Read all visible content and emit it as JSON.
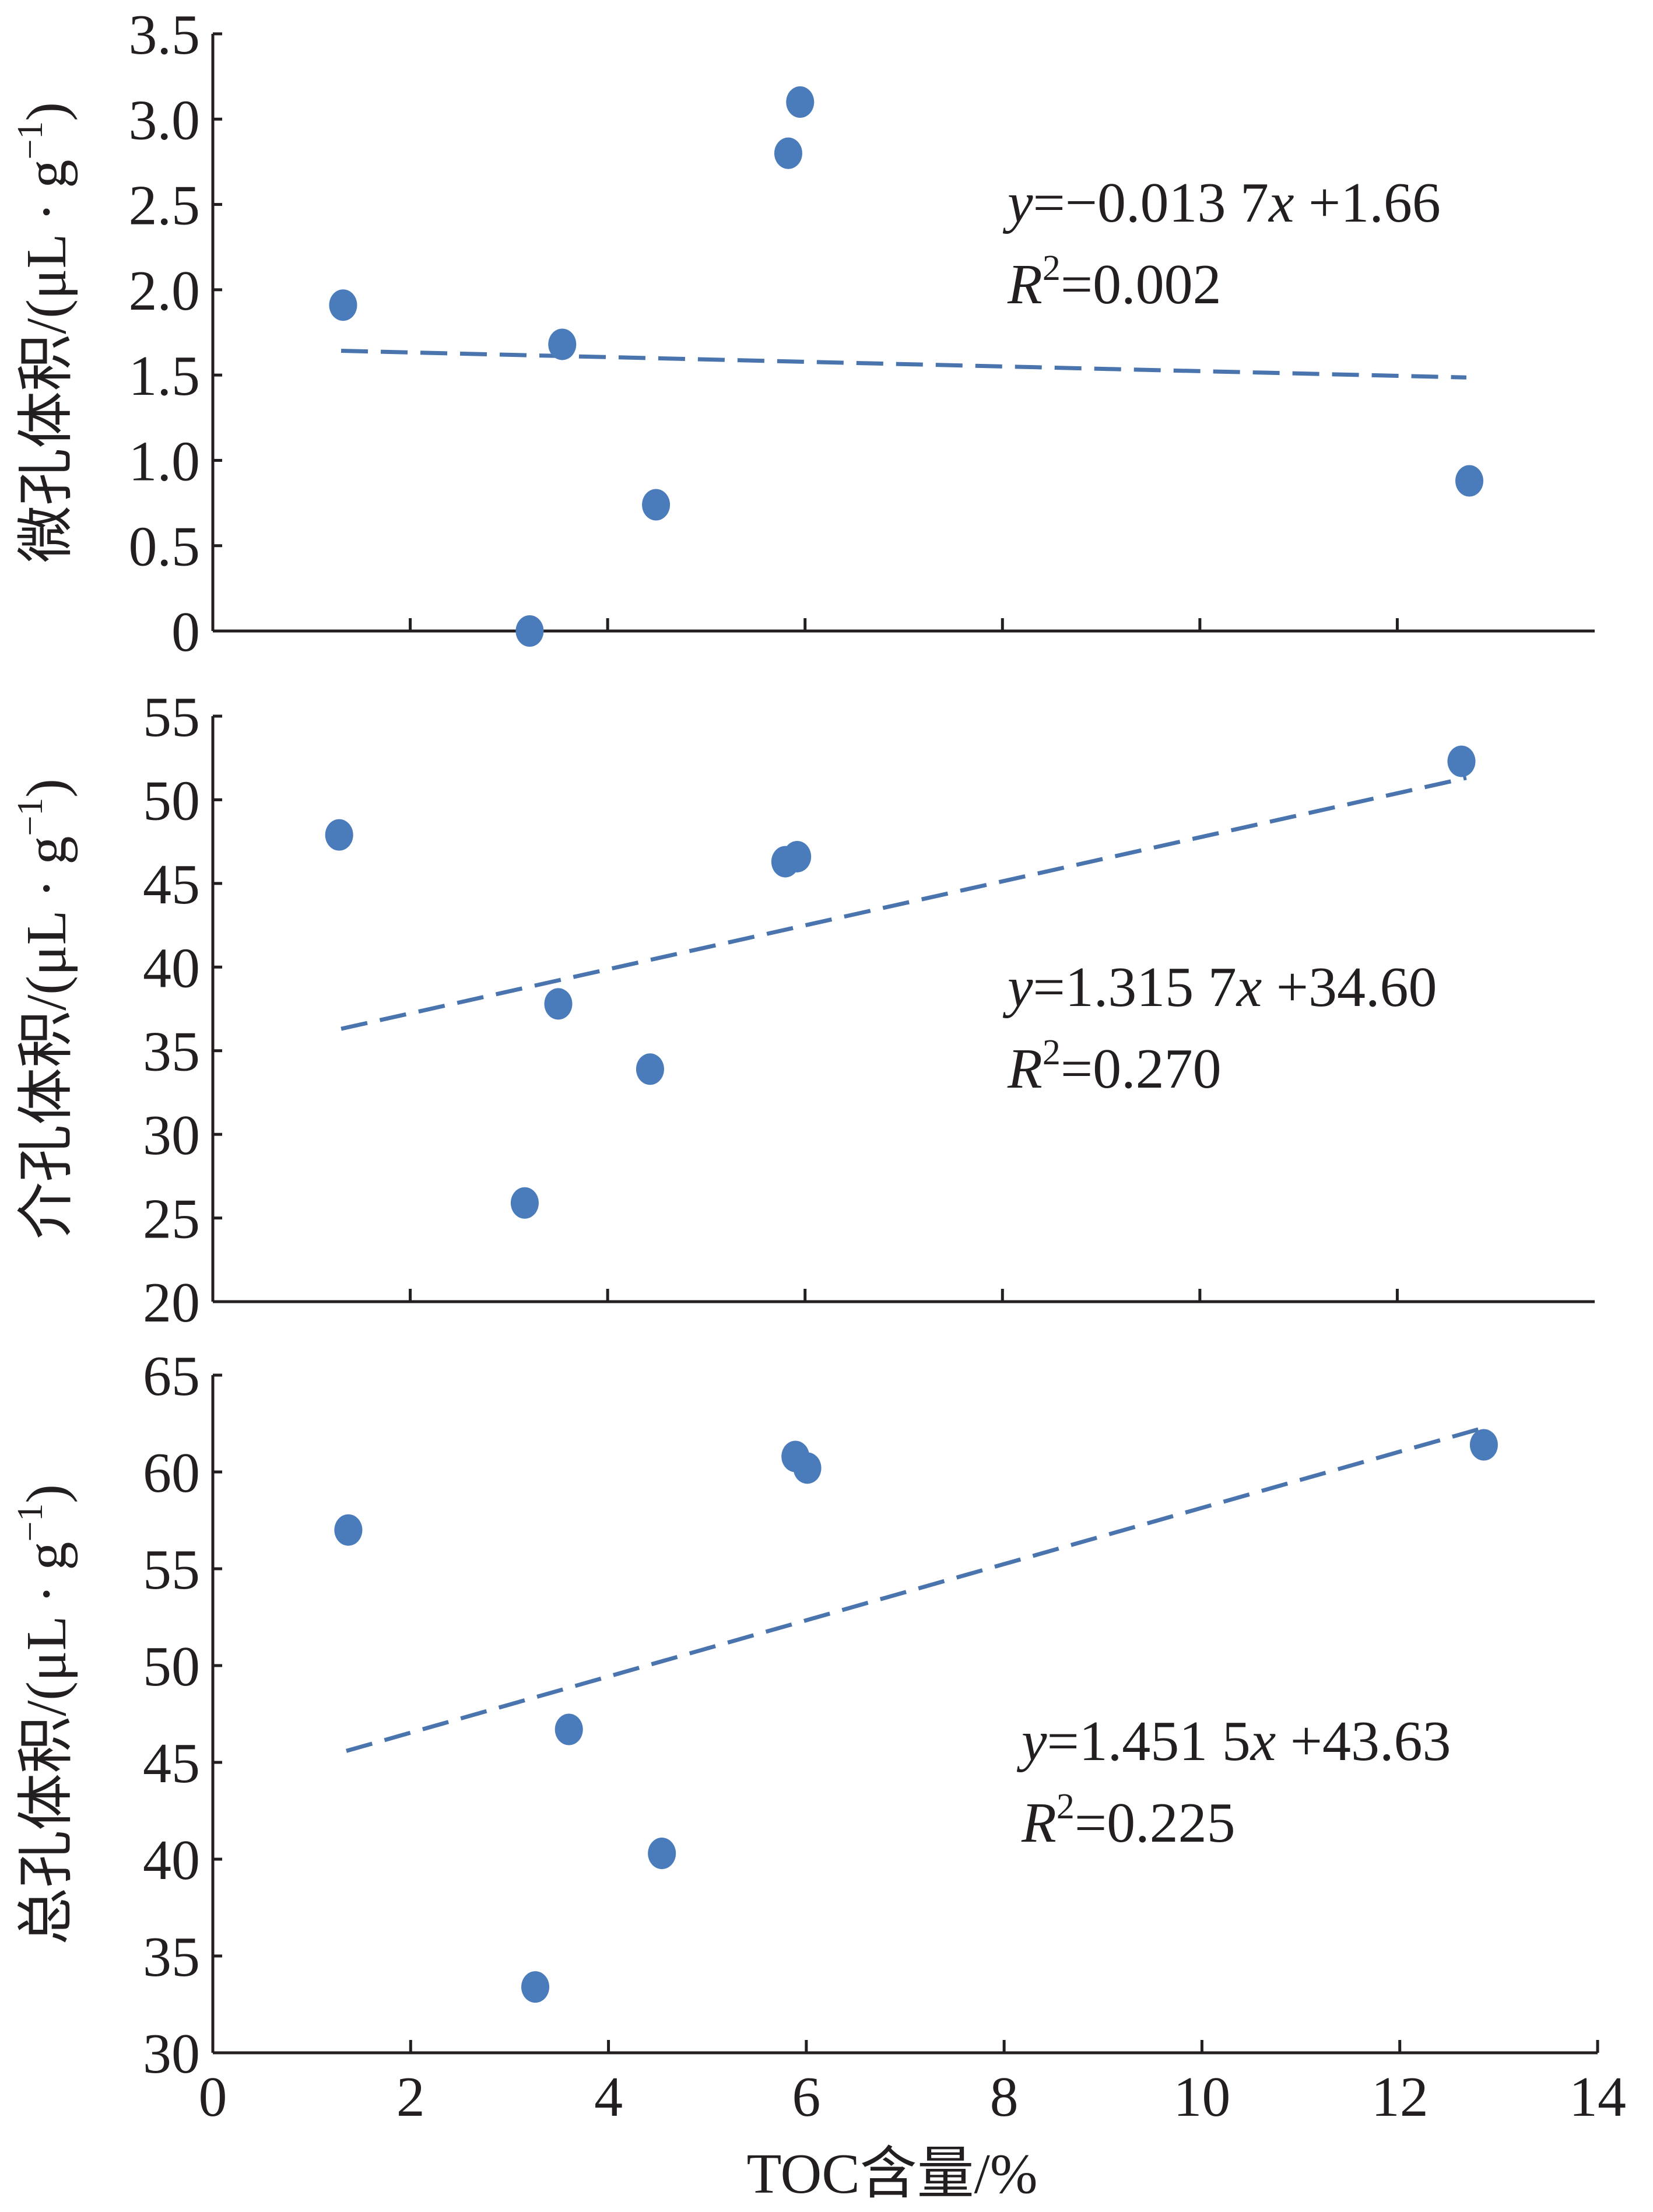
{
  "chart_data": [
    {
      "type": "scatter",
      "panel": "micropore",
      "ylabel": "微孔体积/(μL · g",
      "ylabel_sup": "−1",
      "ylabel_close": ")",
      "ylim": [
        0,
        3.5
      ],
      "yticks": [
        0,
        0.5,
        1.0,
        1.5,
        2.0,
        2.5,
        3.0,
        3.5
      ],
      "ytick_labels": [
        "0",
        "0.5",
        "1.0",
        "1.5",
        "2.0",
        "2.5",
        "3.0",
        "3.5"
      ],
      "xlim": [
        0,
        14
      ],
      "xticks": [
        2,
        4,
        6,
        8,
        10,
        12
      ],
      "points": [
        {
          "x": 1.32,
          "y": 1.91
        },
        {
          "x": 3.54,
          "y": 1.68
        },
        {
          "x": 3.21,
          "y": 0.0
        },
        {
          "x": 4.49,
          "y": 0.74
        },
        {
          "x": 5.83,
          "y": 2.8
        },
        {
          "x": 5.95,
          "y": 3.1
        },
        {
          "x": 12.73,
          "y": 0.88
        }
      ],
      "trendline": {
        "slope": -0.0137,
        "intercept": 1.66,
        "x_range": [
          1.3,
          12.7
        ]
      },
      "equation": {
        "y": "y",
        "rhs": "=−0.013 7",
        "x": "x",
        "const": " +1.66",
        "r": "R",
        "r_sup": "2",
        "r_val": "=0.002"
      }
    },
    {
      "type": "scatter",
      "panel": "mesopore",
      "ylabel": "介孔体积/(μL · g",
      "ylabel_sup": "−1",
      "ylabel_close": ")",
      "ylim": [
        20,
        55
      ],
      "yticks": [
        20,
        25,
        30,
        35,
        40,
        45,
        50,
        55
      ],
      "ytick_labels": [
        "20",
        "25",
        "30",
        "35",
        "40",
        "45",
        "50",
        "55"
      ],
      "xlim": [
        0,
        14
      ],
      "xticks": [
        2,
        4,
        6,
        8,
        10,
        12
      ],
      "points": [
        {
          "x": 1.28,
          "y": 47.9
        },
        {
          "x": 3.5,
          "y": 37.8
        },
        {
          "x": 3.16,
          "y": 25.9
        },
        {
          "x": 4.43,
          "y": 33.9
        },
        {
          "x": 5.8,
          "y": 46.3
        },
        {
          "x": 5.92,
          "y": 46.6
        },
        {
          "x": 12.65,
          "y": 52.3
        }
      ],
      "trendline": {
        "slope": 1.3157,
        "intercept": 34.6,
        "x_range": [
          1.3,
          12.7
        ]
      },
      "equation": {
        "y": "y",
        "rhs": "=1.315 7",
        "x": "x",
        "const": " +34.60",
        "r": "R",
        "r_sup": "2",
        "r_val": "=0.270"
      }
    },
    {
      "type": "scatter",
      "panel": "total",
      "ylabel": "总孔体积/(μL · g",
      "ylabel_sup": "−1",
      "ylabel_close": ")",
      "ylim": [
        30,
        65
      ],
      "yticks": [
        30,
        35,
        40,
        45,
        50,
        55,
        60,
        65
      ],
      "ytick_labels": [
        "30",
        "35",
        "40",
        "45",
        "50",
        "55",
        "60",
        "65"
      ],
      "xlim": [
        0,
        14
      ],
      "xticks": [
        0,
        2,
        4,
        6,
        8,
        10,
        12,
        14
      ],
      "xtick_labels": [
        "0",
        "2",
        "4",
        "6",
        "8",
        "10",
        "12",
        "14"
      ],
      "xlabel": "TOC含量/%",
      "points": [
        {
          "x": 1.37,
          "y": 57.0
        },
        {
          "x": 3.6,
          "y": 46.7
        },
        {
          "x": 3.26,
          "y": 33.4
        },
        {
          "x": 4.54,
          "y": 40.3
        },
        {
          "x": 5.89,
          "y": 60.8
        },
        {
          "x": 6.01,
          "y": 60.2
        },
        {
          "x": 12.85,
          "y": 61.4
        }
      ],
      "trendline": {
        "slope": 1.4515,
        "intercept": 43.63,
        "x_range": [
          1.35,
          12.8
        ]
      },
      "equation": {
        "y": "y",
        "rhs": "=1.451 5",
        "x": "x",
        "const": " +43.63",
        "r": "R",
        "r_sup": "2",
        "r_val": "=0.225"
      }
    }
  ]
}
